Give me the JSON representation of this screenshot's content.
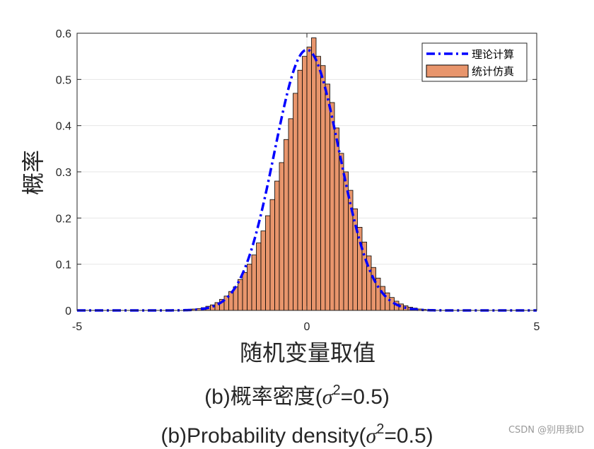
{
  "chart_data": {
    "type": "bar",
    "xlabel": "随机变量取值",
    "ylabel": "概率",
    "xlim": [
      -5,
      5
    ],
    "ylim": [
      0,
      0.6
    ],
    "xticks": [
      "-5",
      "0",
      "5"
    ],
    "yticks": [
      "0",
      "0.1",
      "0.2",
      "0.3",
      "0.4",
      "0.5",
      "0.6"
    ],
    "grid": true,
    "legend_position": "top-right",
    "series": [
      {
        "name": "理论计算",
        "kind": "line",
        "style": "dash-dot",
        "color": "#0000ff",
        "distribution": {
          "family": "normal",
          "mean": 0,
          "variance": 0.5
        }
      },
      {
        "name": "统计仿真",
        "kind": "histogram",
        "color": "#e8956c",
        "edgecolor": "#000000",
        "bin_width": 0.1,
        "bins": [
          {
            "x": -2.45,
            "y": 0.003
          },
          {
            "x": -2.35,
            "y": 0.004
          },
          {
            "x": -2.25,
            "y": 0.006
          },
          {
            "x": -2.15,
            "y": 0.009
          },
          {
            "x": -2.05,
            "y": 0.012
          },
          {
            "x": -1.95,
            "y": 0.017
          },
          {
            "x": -1.85,
            "y": 0.024
          },
          {
            "x": -1.75,
            "y": 0.031
          },
          {
            "x": -1.65,
            "y": 0.041
          },
          {
            "x": -1.55,
            "y": 0.051
          },
          {
            "x": -1.45,
            "y": 0.067
          },
          {
            "x": -1.35,
            "y": 0.082
          },
          {
            "x": -1.25,
            "y": 0.1
          },
          {
            "x": -1.15,
            "y": 0.12
          },
          {
            "x": -1.05,
            "y": 0.146
          },
          {
            "x": -0.95,
            "y": 0.172
          },
          {
            "x": -0.85,
            "y": 0.205
          },
          {
            "x": -0.75,
            "y": 0.24
          },
          {
            "x": -0.65,
            "y": 0.28
          },
          {
            "x": -0.55,
            "y": 0.32
          },
          {
            "x": -0.45,
            "y": 0.37
          },
          {
            "x": -0.35,
            "y": 0.415
          },
          {
            "x": -0.25,
            "y": 0.47
          },
          {
            "x": -0.15,
            "y": 0.52
          },
          {
            "x": -0.05,
            "y": 0.55
          },
          {
            "x": 0.05,
            "y": 0.57
          },
          {
            "x": 0.15,
            "y": 0.59
          },
          {
            "x": 0.25,
            "y": 0.55
          },
          {
            "x": 0.35,
            "y": 0.53
          },
          {
            "x": 0.45,
            "y": 0.49
          },
          {
            "x": 0.55,
            "y": 0.45
          },
          {
            "x": 0.65,
            "y": 0.395
          },
          {
            "x": 0.75,
            "y": 0.34
          },
          {
            "x": 0.85,
            "y": 0.3
          },
          {
            "x": 0.95,
            "y": 0.26
          },
          {
            "x": 1.05,
            "y": 0.22
          },
          {
            "x": 1.15,
            "y": 0.18
          },
          {
            "x": 1.25,
            "y": 0.148
          },
          {
            "x": 1.35,
            "y": 0.118
          },
          {
            "x": 1.45,
            "y": 0.093
          },
          {
            "x": 1.55,
            "y": 0.07
          },
          {
            "x": 1.65,
            "y": 0.052
          },
          {
            "x": 1.75,
            "y": 0.038
          },
          {
            "x": 1.85,
            "y": 0.028
          },
          {
            "x": 1.95,
            "y": 0.02
          },
          {
            "x": 2.05,
            "y": 0.014
          },
          {
            "x": 2.15,
            "y": 0.01
          },
          {
            "x": 2.25,
            "y": 0.007
          },
          {
            "x": 2.35,
            "y": 0.005
          },
          {
            "x": 2.45,
            "y": 0.003
          },
          {
            "x": 2.55,
            "y": 0.002
          }
        ]
      }
    ],
    "colors": {
      "axis": "#262626",
      "grid": "#e6e6e6"
    }
  },
  "captions": {
    "line1_prefix": "(b)概率密度(",
    "line2_prefix": "(b)Probability density(",
    "sigma": "σ",
    "exponent": "2",
    "suffix": "=0.5)"
  },
  "watermark": "CSDN @别用我ID"
}
